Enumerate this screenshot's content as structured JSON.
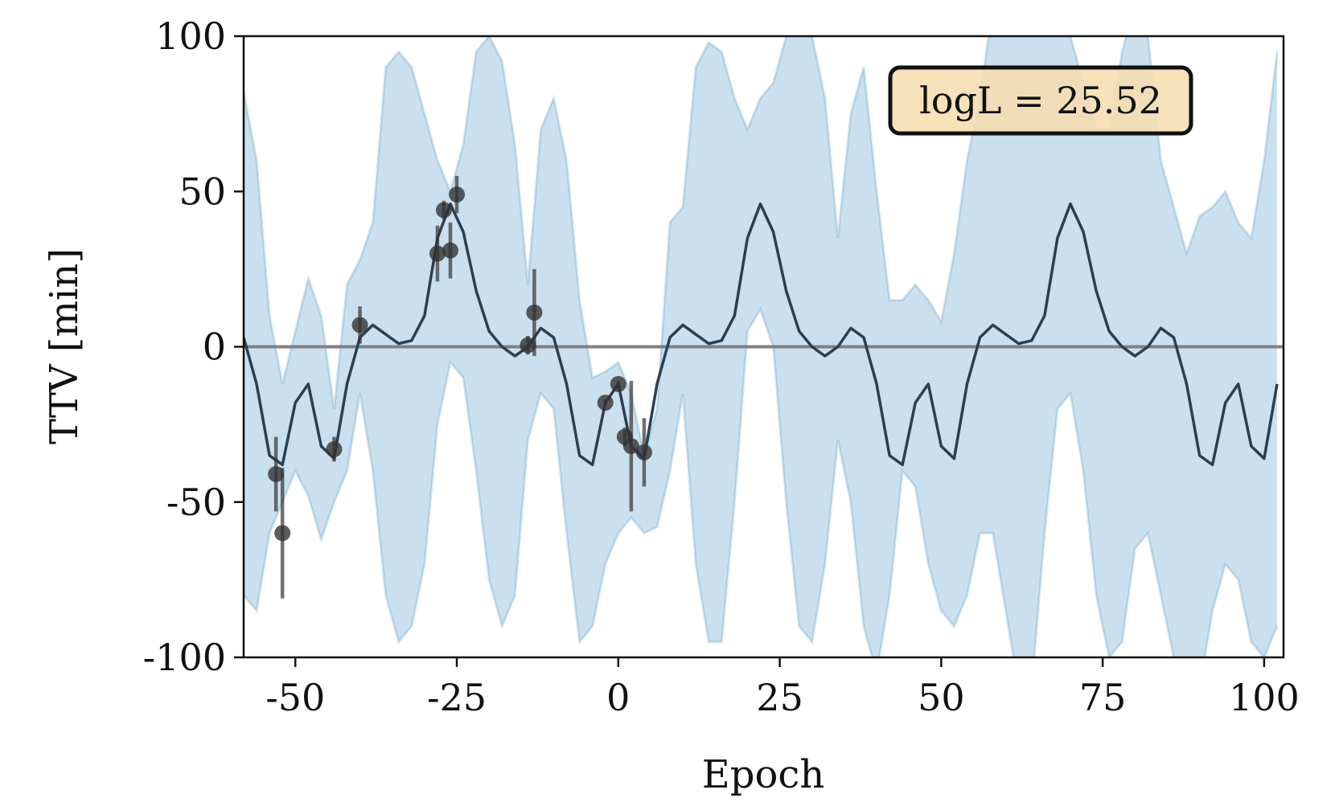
{
  "chart_data": {
    "type": "line",
    "xlabel": "Epoch",
    "ylabel": "TTV [min]",
    "xlim": [
      -58,
      103
    ],
    "ylim": [
      -100,
      100
    ],
    "xticks": [
      -50,
      -25,
      0,
      25,
      50,
      75,
      100
    ],
    "yticks": [
      -100,
      -50,
      0,
      50,
      100
    ],
    "hline": {
      "value": 0,
      "color": "#808080"
    },
    "annotation": "logL = 25.52",
    "band": {
      "color": "#1f77b4",
      "x": [
        -58,
        -56,
        -54,
        -52,
        -50,
        -48,
        -46,
        -44,
        -42,
        -40,
        -38,
        -36,
        -34,
        -32,
        -30,
        -28,
        -26,
        -24,
        -22,
        -20,
        -18,
        -16,
        -14,
        -12,
        -10,
        -8,
        -6,
        -4,
        -2,
        0,
        2,
        4,
        6,
        8,
        10,
        12,
        14,
        16,
        18,
        20,
        22,
        24,
        26,
        28,
        30,
        32,
        34,
        36,
        38,
        40,
        42,
        44,
        46,
        48,
        50,
        52,
        54,
        56,
        58,
        60,
        62,
        64,
        66,
        68,
        70,
        72,
        74,
        76,
        78,
        80,
        82,
        84,
        86,
        88,
        90,
        92,
        94,
        96,
        98,
        100,
        102
      ],
      "upper": [
        82,
        60,
        10,
        -12,
        5,
        22,
        10,
        -20,
        20,
        28,
        40,
        90,
        95,
        90,
        75,
        60,
        50,
        65,
        95,
        100,
        92,
        65,
        20,
        70,
        80,
        60,
        15,
        -10,
        -8,
        -5,
        -15,
        -35,
        -20,
        40,
        45,
        90,
        98,
        95,
        80,
        70,
        80,
        85,
        100,
        110,
        100,
        80,
        35,
        75,
        90,
        50,
        15,
        15,
        20,
        15,
        8,
        30,
        60,
        80,
        110,
        110,
        115,
        120,
        115,
        110,
        100,
        85,
        70,
        70,
        95,
        110,
        100,
        60,
        45,
        30,
        42,
        45,
        50,
        40,
        35,
        60,
        95
      ],
      "lower": [
        -80,
        -85,
        -60,
        -50,
        -40,
        -48,
        -62,
        -50,
        -40,
        -15,
        -40,
        -80,
        -95,
        -90,
        -70,
        -25,
        -5,
        -10,
        -40,
        -75,
        -90,
        -80,
        -30,
        -15,
        -20,
        -60,
        -95,
        -90,
        -70,
        -60,
        -55,
        -60,
        -58,
        -40,
        -15,
        -70,
        -95,
        -95,
        -50,
        5,
        12,
        0,
        -50,
        -90,
        -95,
        -70,
        -30,
        -50,
        -90,
        -105,
        -80,
        -40,
        -45,
        -70,
        -85,
        -90,
        -80,
        -60,
        -60,
        -85,
        -110,
        -110,
        -60,
        -20,
        -15,
        -40,
        -80,
        -100,
        -95,
        -65,
        -60,
        -80,
        -100,
        -110,
        -110,
        -85,
        -70,
        -75,
        -95,
        -100,
        -90
      ]
    },
    "model": {
      "color": "#2c3e50",
      "x": [
        -58,
        -56,
        -54,
        -52,
        -50,
        -48,
        -46,
        -44,
        -42,
        -40,
        -38,
        -36,
        -34,
        -32,
        -30,
        -28,
        -26,
        -24,
        -22,
        -20,
        -18,
        -16,
        -14,
        -12,
        -10,
        -8,
        -6,
        -4,
        -2,
        0,
        2,
        4,
        6,
        8,
        10,
        12,
        14,
        16,
        18,
        20,
        22,
        24,
        26,
        28,
        30,
        32,
        34,
        36,
        38,
        40,
        42,
        44,
        46,
        48,
        50,
        52,
        54,
        56,
        58,
        60,
        62,
        64,
        66,
        68,
        70,
        72,
        74,
        76,
        78,
        80,
        82,
        84,
        86,
        88,
        90,
        92,
        94,
        96,
        98,
        100,
        102
      ],
      "values": [
        3,
        -12,
        -35,
        -38,
        -18,
        -12,
        -32,
        -36,
        -12,
        3,
        7,
        4,
        1,
        2,
        10,
        35,
        46,
        37,
        18,
        5,
        0,
        -3,
        0,
        6,
        3,
        -12,
        -35,
        -38,
        -18,
        -12,
        -32,
        -36,
        -12,
        3,
        7,
        4,
        1,
        2,
        10,
        35,
        46,
        37,
        18,
        5,
        0,
        -3,
        0,
        6,
        3,
        -12,
        -35,
        -38,
        -18,
        -12,
        -32,
        -36,
        -12,
        3,
        7,
        4,
        1,
        2,
        10,
        35,
        46,
        37,
        18,
        5,
        0,
        -3,
        0,
        6,
        3,
        -12,
        -35,
        -38,
        -18,
        -12,
        -32,
        -36,
        -12
      ]
    },
    "points": {
      "color": "#333333",
      "x": [
        -53,
        -52,
        -44,
        -40,
        -28,
        -27,
        -26,
        -25,
        -14,
        -13,
        -2,
        0,
        1,
        2,
        4
      ],
      "values": [
        -41,
        -60,
        -33,
        7,
        30,
        44,
        31,
        49,
        0.5,
        11,
        -18,
        -12,
        -29,
        -32,
        -34
      ],
      "errors": [
        12,
        21,
        4,
        6,
        9,
        3,
        9,
        6,
        3,
        14,
        1,
        1,
        3,
        21,
        11
      ]
    }
  }
}
